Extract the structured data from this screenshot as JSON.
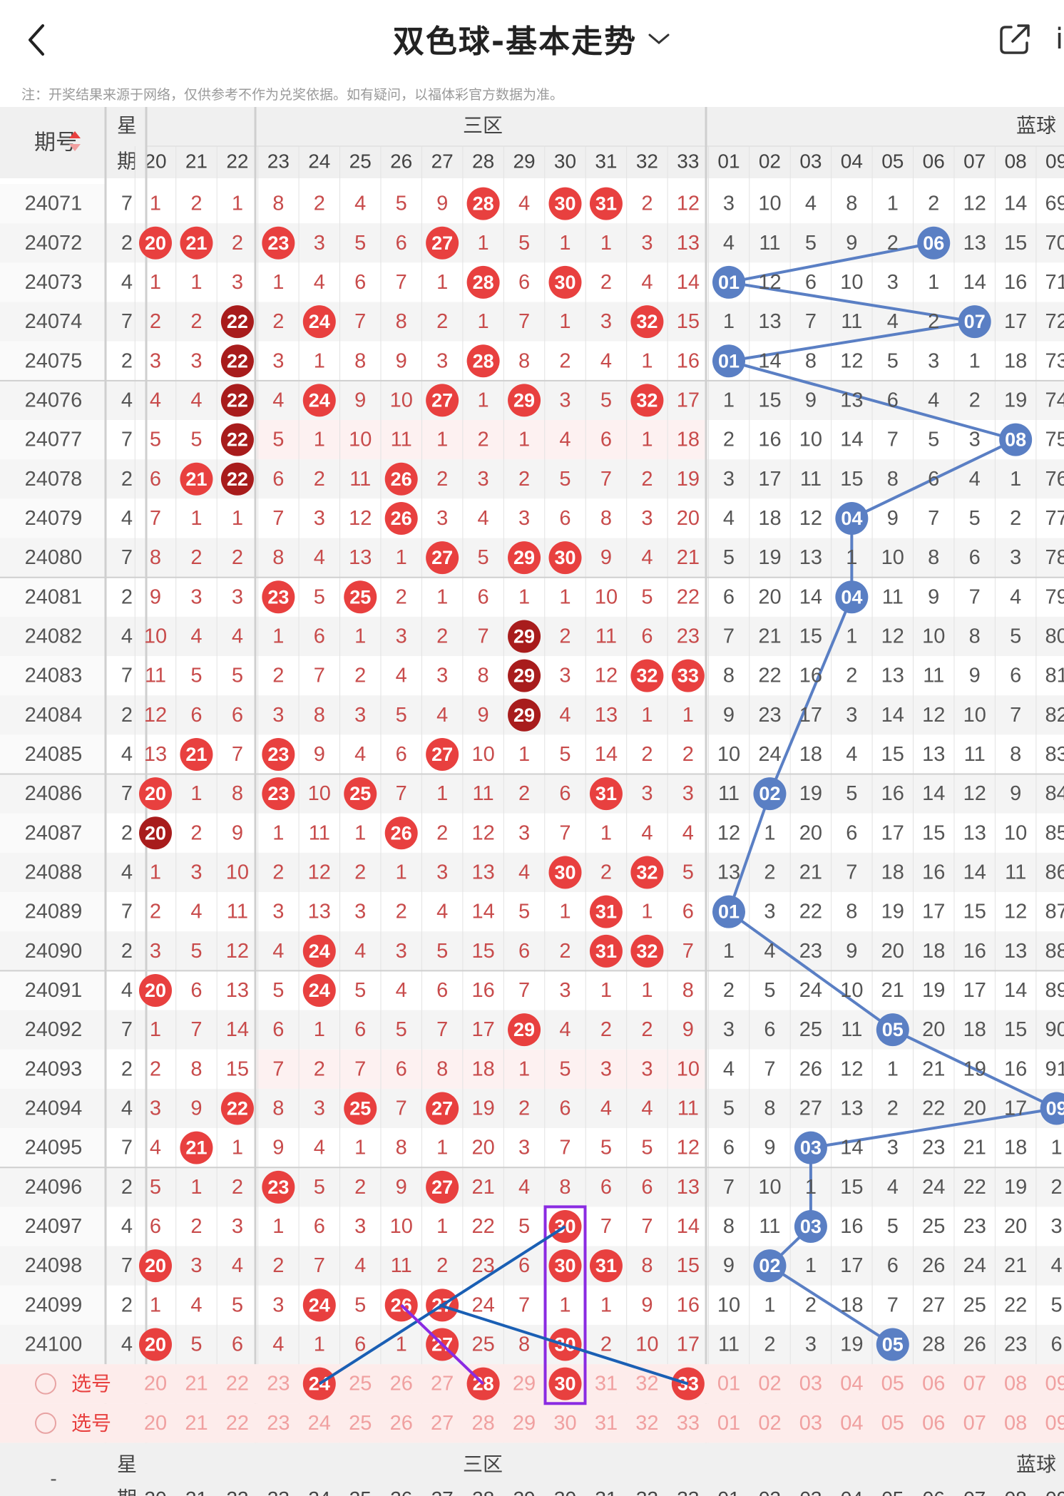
{
  "header": {
    "back_icon": "chevron-left-icon",
    "title": "双色球-基本走势",
    "dropdown_icon": "chevron-down-icon",
    "share_icon": "share-icon",
    "partial_text": "i"
  },
  "note": "注：开奖结果来源于网络，仅供参考不作为兑奖依据。如有疑问，以福体彩官方数据为准。",
  "table": {
    "period_label": "期号",
    "weekday_label_1": "星",
    "weekday_label_2": "期",
    "zone3_label": "三区",
    "blue_label": "蓝球",
    "red_cols": [
      "20",
      "21",
      "22",
      "23",
      "24",
      "25",
      "26",
      "27",
      "28",
      "29",
      "30",
      "31",
      "32",
      "33"
    ],
    "blue_cols": [
      "01",
      "02",
      "03",
      "04",
      "05",
      "06",
      "07",
      "08",
      "09"
    ],
    "select_label": "选号",
    "footer_period": "-",
    "colors": {
      "red": "#e8403f",
      "darkred": "#a81c1c",
      "blue": "#5a7fc4",
      "purple": "#8a2be2",
      "line_blue": "#1a5fb4",
      "sel_bg": "#fdeceb",
      "alt_bg": "#f4f4f4",
      "hot_bg": "#fdf1f1"
    },
    "rows": [
      {
        "p": "24071",
        "w": "7",
        "red": [
          "1",
          "2",
          "1",
          "8",
          "2",
          "4",
          "5",
          "9",
          "28",
          "4",
          "30",
          "31",
          "2",
          "12"
        ],
        "blue": [
          "3",
          "10",
          "4",
          "8",
          "1",
          "2",
          "12",
          "14",
          "69"
        ]
      },
      {
        "p": "24072",
        "w": "2",
        "red": [
          "20",
          "21",
          "2",
          "23",
          "3",
          "5",
          "6",
          "27",
          "1",
          "5",
          "1",
          "1",
          "3",
          "13"
        ],
        "blue": [
          "4",
          "11",
          "5",
          "9",
          "2",
          "06",
          "13",
          "15",
          "70"
        ]
      },
      {
        "p": "24073",
        "w": "4",
        "red": [
          "1",
          "1",
          "3",
          "1",
          "4",
          "6",
          "7",
          "1",
          "28",
          "6",
          "30",
          "2",
          "4",
          "14"
        ],
        "blue": [
          "01",
          "12",
          "6",
          "10",
          "3",
          "1",
          "14",
          "16",
          "71"
        ]
      },
      {
        "p": "24074",
        "w": "7",
        "red": [
          "2",
          "2",
          "22",
          "2",
          "24",
          "7",
          "8",
          "2",
          "1",
          "7",
          "1",
          "3",
          "32",
          "15"
        ],
        "blue": [
          "1",
          "13",
          "7",
          "11",
          "4",
          "2",
          "07",
          "17",
          "72"
        ]
      },
      {
        "p": "24075",
        "w": "2",
        "red": [
          "3",
          "3",
          "22",
          "3",
          "1",
          "8",
          "9",
          "3",
          "28",
          "8",
          "2",
          "4",
          "1",
          "16"
        ],
        "blue": [
          "01",
          "14",
          "8",
          "12",
          "5",
          "3",
          "1",
          "18",
          "73"
        ]
      },
      {
        "p": "24076",
        "w": "4",
        "red": [
          "4",
          "4",
          "22",
          "4",
          "24",
          "9",
          "10",
          "27",
          "1",
          "29",
          "3",
          "5",
          "32",
          "17"
        ],
        "blue": [
          "1",
          "15",
          "9",
          "13",
          "6",
          "4",
          "2",
          "19",
          "74"
        ]
      },
      {
        "p": "24077",
        "w": "7",
        "red": [
          "5",
          "5",
          "22",
          "5",
          "1",
          "10",
          "11",
          "1",
          "2",
          "1",
          "4",
          "6",
          "1",
          "18"
        ],
        "blue": [
          "2",
          "16",
          "10",
          "14",
          "7",
          "5",
          "3",
          "08",
          "75"
        ]
      },
      {
        "p": "24078",
        "w": "2",
        "red": [
          "6",
          "21",
          "22",
          "6",
          "2",
          "11",
          "26",
          "2",
          "3",
          "2",
          "5",
          "7",
          "2",
          "19"
        ],
        "blue": [
          "3",
          "17",
          "11",
          "15",
          "8",
          "6",
          "4",
          "1",
          "76"
        ]
      },
      {
        "p": "24079",
        "w": "4",
        "red": [
          "7",
          "1",
          "1",
          "7",
          "3",
          "12",
          "26",
          "3",
          "4",
          "3",
          "6",
          "8",
          "3",
          "20"
        ],
        "blue": [
          "4",
          "18",
          "12",
          "04",
          "9",
          "7",
          "5",
          "2",
          "77"
        ]
      },
      {
        "p": "24080",
        "w": "7",
        "red": [
          "8",
          "2",
          "2",
          "8",
          "4",
          "13",
          "1",
          "27",
          "5",
          "29",
          "30",
          "9",
          "4",
          "21"
        ],
        "blue": [
          "5",
          "19",
          "13",
          "1",
          "10",
          "8",
          "6",
          "3",
          "78"
        ]
      },
      {
        "p": "24081",
        "w": "2",
        "red": [
          "9",
          "3",
          "3",
          "23",
          "5",
          "25",
          "2",
          "1",
          "6",
          "1",
          "1",
          "10",
          "5",
          "22"
        ],
        "blue": [
          "6",
          "20",
          "14",
          "04",
          "11",
          "9",
          "7",
          "4",
          "79"
        ]
      },
      {
        "p": "24082",
        "w": "4",
        "red": [
          "10",
          "4",
          "4",
          "1",
          "6",
          "1",
          "3",
          "2",
          "7",
          "29",
          "2",
          "11",
          "6",
          "23"
        ],
        "blue": [
          "7",
          "21",
          "15",
          "1",
          "12",
          "10",
          "8",
          "5",
          "80"
        ]
      },
      {
        "p": "24083",
        "w": "7",
        "red": [
          "11",
          "5",
          "5",
          "2",
          "7",
          "2",
          "4",
          "3",
          "8",
          "29",
          "3",
          "12",
          "32",
          "33"
        ],
        "blue": [
          "8",
          "22",
          "16",
          "2",
          "13",
          "11",
          "9",
          "6",
          "81"
        ]
      },
      {
        "p": "24084",
        "w": "2",
        "red": [
          "12",
          "6",
          "6",
          "3",
          "8",
          "3",
          "5",
          "4",
          "9",
          "29",
          "4",
          "13",
          "1",
          "1"
        ],
        "blue": [
          "9",
          "23",
          "17",
          "3",
          "14",
          "12",
          "10",
          "7",
          "82"
        ]
      },
      {
        "p": "24085",
        "w": "4",
        "red": [
          "13",
          "21",
          "7",
          "23",
          "9",
          "4",
          "6",
          "27",
          "10",
          "1",
          "5",
          "14",
          "2",
          "2"
        ],
        "blue": [
          "10",
          "24",
          "18",
          "4",
          "15",
          "13",
          "11",
          "8",
          "83"
        ]
      },
      {
        "p": "24086",
        "w": "7",
        "red": [
          "20",
          "1",
          "8",
          "23",
          "10",
          "25",
          "7",
          "1",
          "11",
          "2",
          "6",
          "31",
          "3",
          "3"
        ],
        "blue": [
          "11",
          "02",
          "19",
          "5",
          "16",
          "14",
          "12",
          "9",
          "84"
        ]
      },
      {
        "p": "24087",
        "w": "2",
        "red": [
          "20",
          "2",
          "9",
          "1",
          "11",
          "1",
          "26",
          "2",
          "12",
          "3",
          "7",
          "1",
          "4",
          "4"
        ],
        "blue": [
          "12",
          "1",
          "20",
          "6",
          "17",
          "15",
          "13",
          "10",
          "85"
        ]
      },
      {
        "p": "24088",
        "w": "4",
        "red": [
          "1",
          "3",
          "10",
          "2",
          "12",
          "2",
          "1",
          "3",
          "13",
          "4",
          "30",
          "2",
          "32",
          "5"
        ],
        "blue": [
          "13",
          "2",
          "21",
          "7",
          "18",
          "16",
          "14",
          "11",
          "86"
        ]
      },
      {
        "p": "24089",
        "w": "7",
        "red": [
          "2",
          "4",
          "11",
          "3",
          "13",
          "3",
          "2",
          "4",
          "14",
          "5",
          "1",
          "31",
          "1",
          "6"
        ],
        "blue": [
          "01",
          "3",
          "22",
          "8",
          "19",
          "17",
          "15",
          "12",
          "87"
        ]
      },
      {
        "p": "24090",
        "w": "2",
        "red": [
          "3",
          "5",
          "12",
          "4",
          "24",
          "4",
          "3",
          "5",
          "15",
          "6",
          "2",
          "31",
          "32",
          "7"
        ],
        "blue": [
          "1",
          "4",
          "23",
          "9",
          "20",
          "18",
          "16",
          "13",
          "88"
        ]
      },
      {
        "p": "24091",
        "w": "4",
        "red": [
          "20",
          "6",
          "13",
          "5",
          "24",
          "5",
          "4",
          "6",
          "16",
          "7",
          "3",
          "1",
          "1",
          "8"
        ],
        "blue": [
          "2",
          "5",
          "24",
          "10",
          "21",
          "19",
          "17",
          "14",
          "89"
        ]
      },
      {
        "p": "24092",
        "w": "7",
        "red": [
          "1",
          "7",
          "14",
          "6",
          "1",
          "6",
          "5",
          "7",
          "17",
          "29",
          "4",
          "2",
          "2",
          "9"
        ],
        "blue": [
          "3",
          "6",
          "25",
          "11",
          "05",
          "20",
          "18",
          "15",
          "90"
        ]
      },
      {
        "p": "24093",
        "w": "2",
        "red": [
          "2",
          "8",
          "15",
          "7",
          "2",
          "7",
          "6",
          "8",
          "18",
          "1",
          "5",
          "3",
          "3",
          "10"
        ],
        "blue": [
          "4",
          "7",
          "26",
          "12",
          "1",
          "21",
          "19",
          "16",
          "91"
        ]
      },
      {
        "p": "24094",
        "w": "4",
        "red": [
          "3",
          "9",
          "22",
          "8",
          "3",
          "25",
          "7",
          "27",
          "19",
          "2",
          "6",
          "4",
          "4",
          "11"
        ],
        "blue": [
          "5",
          "8",
          "27",
          "13",
          "2",
          "22",
          "20",
          "17",
          "09"
        ]
      },
      {
        "p": "24095",
        "w": "7",
        "red": [
          "4",
          "21",
          "1",
          "9",
          "4",
          "1",
          "8",
          "1",
          "20",
          "3",
          "7",
          "5",
          "5",
          "12"
        ],
        "blue": [
          "6",
          "9",
          "03",
          "14",
          "3",
          "23",
          "21",
          "18",
          "1"
        ]
      },
      {
        "p": "24096",
        "w": "2",
        "red": [
          "5",
          "1",
          "2",
          "23",
          "5",
          "2",
          "9",
          "27",
          "21",
          "4",
          "8",
          "6",
          "6",
          "13"
        ],
        "blue": [
          "7",
          "10",
          "1",
          "15",
          "4",
          "24",
          "22",
          "19",
          "2"
        ]
      },
      {
        "p": "24097",
        "w": "4",
        "red": [
          "6",
          "2",
          "3",
          "1",
          "6",
          "3",
          "10",
          "1",
          "22",
          "5",
          "30",
          "7",
          "7",
          "14"
        ],
        "blue": [
          "8",
          "11",
          "03",
          "16",
          "5",
          "25",
          "23",
          "20",
          "3"
        ]
      },
      {
        "p": "24098",
        "w": "7",
        "red": [
          "20",
          "3",
          "4",
          "2",
          "7",
          "4",
          "11",
          "2",
          "23",
          "6",
          "30",
          "31",
          "8",
          "15"
        ],
        "blue": [
          "9",
          "02",
          "1",
          "17",
          "6",
          "26",
          "24",
          "21",
          "4"
        ]
      },
      {
        "p": "24099",
        "w": "2",
        "red": [
          "1",
          "4",
          "5",
          "3",
          "24",
          "5",
          "26",
          "27",
          "24",
          "7",
          "1",
          "1",
          "9",
          "16"
        ],
        "blue": [
          "10",
          "1",
          "2",
          "18",
          "7",
          "27",
          "25",
          "22",
          "5"
        ]
      },
      {
        "p": "24100",
        "w": "4",
        "red": [
          "20",
          "5",
          "6",
          "4",
          "1",
          "6",
          "1",
          "27",
          "25",
          "8",
          "30",
          "2",
          "10",
          "17"
        ],
        "blue": [
          "11",
          "2",
          "3",
          "19",
          "05",
          "28",
          "26",
          "23",
          "6"
        ]
      }
    ],
    "selected_red": [
      "24",
      "28",
      "30",
      "33"
    ]
  }
}
